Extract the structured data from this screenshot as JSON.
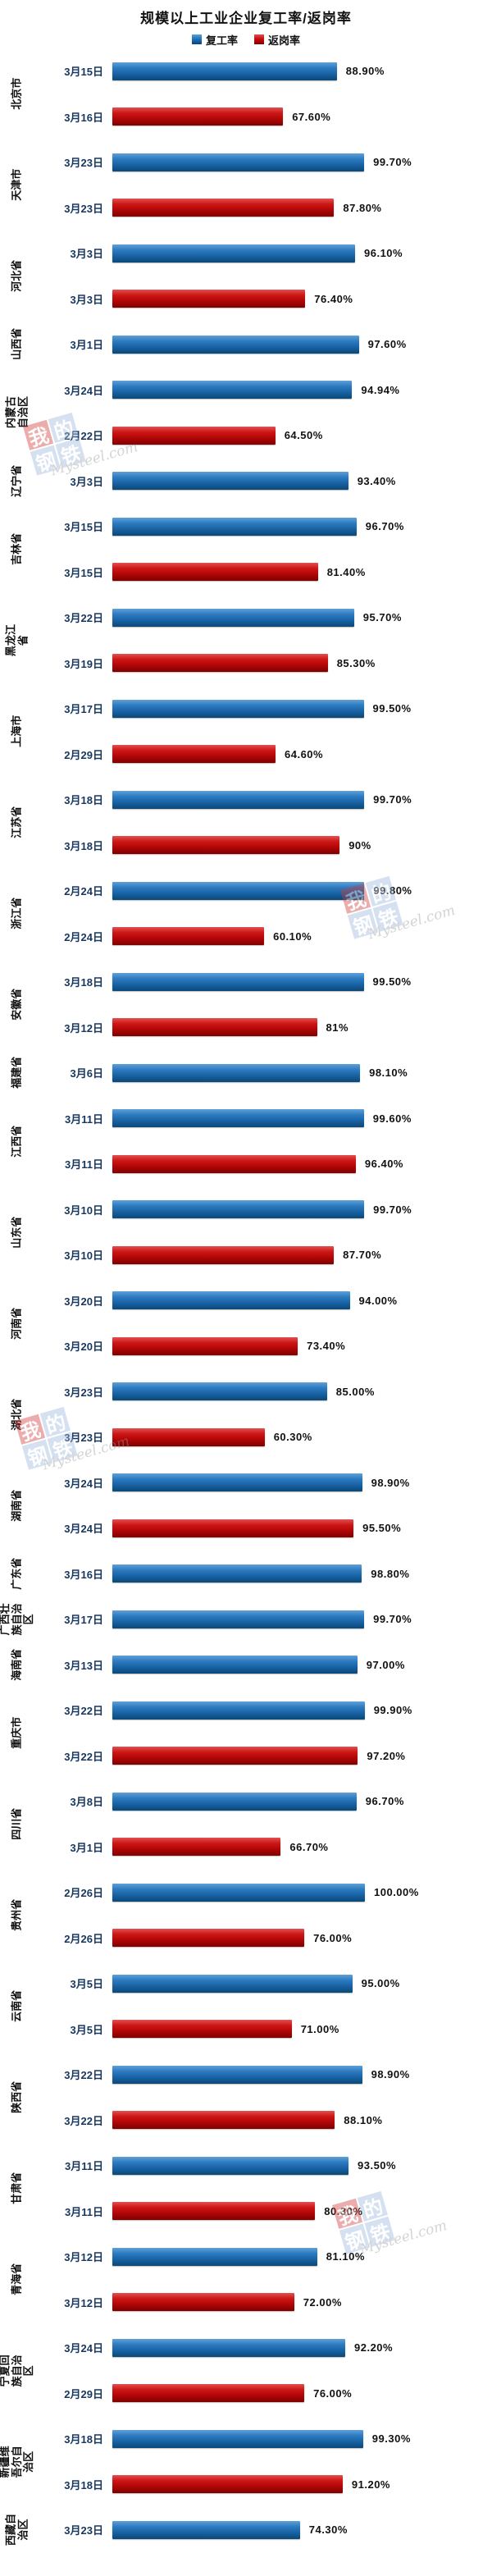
{
  "title": "规模以上工业企业复工率/返岗率",
  "legend": {
    "fugonglv": "复工率",
    "fangganglv": "返岗率"
  },
  "colors": {
    "fugonglv_blue": "#2272B8",
    "fangganglv_red": "#C80D0D",
    "background": "#FFFFFF"
  },
  "watermark": {
    "tiles": [
      "我",
      "的",
      "钢",
      "铁"
    ],
    "site": "Mysteel.com"
  },
  "chart_data": {
    "type": "bar",
    "orientation": "horizontal",
    "title": "规模以上工业企业复工率/返岗率",
    "xlabel": "",
    "ylabel": "",
    "xlim": [
      0,
      100
    ],
    "unit": "%",
    "grid": false,
    "legend_position": "top",
    "series_names": [
      "复工率",
      "返岗率"
    ],
    "groups": [
      {
        "province": "北京市",
        "bars": [
          {
            "date": "3月15日",
            "series": "复工率",
            "value": 88.9,
            "label": "88.90%"
          },
          {
            "date": "3月16日",
            "series": "返岗率",
            "value": 67.6,
            "label": "67.60%"
          }
        ]
      },
      {
        "province": "天津市",
        "bars": [
          {
            "date": "3月23日",
            "series": "复工率",
            "value": 99.7,
            "label": "99.70%"
          },
          {
            "date": "3月23日",
            "series": "返岗率",
            "value": 87.8,
            "label": "87.80%"
          }
        ]
      },
      {
        "province": "河北省",
        "bars": [
          {
            "date": "3月3日",
            "series": "复工率",
            "value": 96.1,
            "label": "96.10%"
          },
          {
            "date": "3月3日",
            "series": "返岗率",
            "value": 76.4,
            "label": "76.40%"
          }
        ]
      },
      {
        "province": "山西省",
        "bars": [
          {
            "date": "3月1日",
            "series": "复工率",
            "value": 97.6,
            "label": "97.60%"
          }
        ]
      },
      {
        "province": "内蒙古自治区",
        "bars": [
          {
            "date": "3月24日",
            "series": "复工率",
            "value": 94.94,
            "label": "94.94%"
          },
          {
            "date": "2月22日",
            "series": "返岗率",
            "value": 64.5,
            "label": "64.50%"
          }
        ]
      },
      {
        "province": "辽宁省",
        "bars": [
          {
            "date": "3月3日",
            "series": "复工率",
            "value": 93.4,
            "label": "93.40%"
          }
        ]
      },
      {
        "province": "吉林省",
        "bars": [
          {
            "date": "3月15日",
            "series": "复工率",
            "value": 96.7,
            "label": "96.70%"
          },
          {
            "date": "3月15日",
            "series": "返岗率",
            "value": 81.4,
            "label": "81.40%"
          }
        ]
      },
      {
        "province": "黑龙江省",
        "bars": [
          {
            "date": "3月22日",
            "series": "复工率",
            "value": 95.7,
            "label": "95.70%"
          },
          {
            "date": "3月19日",
            "series": "返岗率",
            "value": 85.3,
            "label": "85.30%"
          }
        ]
      },
      {
        "province": "上海市",
        "bars": [
          {
            "date": "3月17日",
            "series": "复工率",
            "value": 99.5,
            "label": "99.50%"
          },
          {
            "date": "2月29日",
            "series": "返岗率",
            "value": 64.6,
            "label": "64.60%"
          }
        ]
      },
      {
        "province": "江苏省",
        "bars": [
          {
            "date": "3月18日",
            "series": "复工率",
            "value": 99.7,
            "label": "99.70%"
          },
          {
            "date": "3月18日",
            "series": "返岗率",
            "value": 90,
            "label": "90%"
          }
        ]
      },
      {
        "province": "浙江省",
        "bars": [
          {
            "date": "2月24日",
            "series": "复工率",
            "value": 99.8,
            "label": "99.80%"
          },
          {
            "date": "2月24日",
            "series": "返岗率",
            "value": 60.1,
            "label": "60.10%"
          }
        ]
      },
      {
        "province": "安徽省",
        "bars": [
          {
            "date": "3月18日",
            "series": "复工率",
            "value": 99.5,
            "label": "99.50%"
          },
          {
            "date": "3月12日",
            "series": "返岗率",
            "value": 81,
            "label": "81%"
          }
        ]
      },
      {
        "province": "福建省",
        "bars": [
          {
            "date": "3月6日",
            "series": "复工率",
            "value": 98.1,
            "label": "98.10%"
          }
        ]
      },
      {
        "province": "江西省",
        "bars": [
          {
            "date": "3月11日",
            "series": "复工率",
            "value": 99.6,
            "label": "99.60%"
          },
          {
            "date": "3月11日",
            "series": "返岗率",
            "value": 96.4,
            "label": "96.40%"
          }
        ]
      },
      {
        "province": "山东省",
        "bars": [
          {
            "date": "3月10日",
            "series": "复工率",
            "value": 99.7,
            "label": "99.70%"
          },
          {
            "date": "3月10日",
            "series": "返岗率",
            "value": 87.7,
            "label": "87.70%"
          }
        ]
      },
      {
        "province": "河南省",
        "bars": [
          {
            "date": "3月20日",
            "series": "复工率",
            "value": 94.0,
            "label": "94.00%"
          },
          {
            "date": "3月20日",
            "series": "返岗率",
            "value": 73.4,
            "label": "73.40%"
          }
        ]
      },
      {
        "province": "湖北省",
        "bars": [
          {
            "date": "3月23日",
            "series": "复工率",
            "value": 85.0,
            "label": "85.00%"
          },
          {
            "date": "3月23日",
            "series": "返岗率",
            "value": 60.3,
            "label": "60.30%"
          }
        ]
      },
      {
        "province": "湖南省",
        "bars": [
          {
            "date": "3月24日",
            "series": "复工率",
            "value": 98.9,
            "label": "98.90%"
          },
          {
            "date": "3月24日",
            "series": "返岗率",
            "value": 95.5,
            "label": "95.50%"
          }
        ]
      },
      {
        "province": "广东省",
        "bars": [
          {
            "date": "3月16日",
            "series": "复工率",
            "value": 98.8,
            "label": "98.80%"
          }
        ]
      },
      {
        "province": "广西壮族自治区",
        "bars": [
          {
            "date": "3月17日",
            "series": "复工率",
            "value": 99.7,
            "label": "99.70%"
          }
        ]
      },
      {
        "province": "海南省",
        "bars": [
          {
            "date": "3月13日",
            "series": "复工率",
            "value": 97.0,
            "label": "97.00%"
          }
        ]
      },
      {
        "province": "重庆市",
        "bars": [
          {
            "date": "3月22日",
            "series": "复工率",
            "value": 99.9,
            "label": "99.90%"
          },
          {
            "date": "3月22日",
            "series": "返岗率",
            "value": 97.2,
            "label": "97.20%"
          }
        ]
      },
      {
        "province": "四川省",
        "bars": [
          {
            "date": "3月8日",
            "series": "复工率",
            "value": 96.7,
            "label": "96.70%"
          },
          {
            "date": "3月1日",
            "series": "返岗率",
            "value": 66.7,
            "label": "66.70%"
          }
        ]
      },
      {
        "province": "贵州省",
        "bars": [
          {
            "date": "2月26日",
            "series": "复工率",
            "value": 100.0,
            "label": "100.00%"
          },
          {
            "date": "2月26日",
            "series": "返岗率",
            "value": 76.0,
            "label": "76.00%"
          }
        ]
      },
      {
        "province": "云南省",
        "bars": [
          {
            "date": "3月5日",
            "series": "复工率",
            "value": 95.0,
            "label": "95.00%"
          },
          {
            "date": "3月5日",
            "series": "返岗率",
            "value": 71.0,
            "label": "71.00%"
          }
        ]
      },
      {
        "province": "陕西省",
        "bars": [
          {
            "date": "3月22日",
            "series": "复工率",
            "value": 98.9,
            "label": "98.90%"
          },
          {
            "date": "3月22日",
            "series": "返岗率",
            "value": 88.1,
            "label": "88.10%"
          }
        ]
      },
      {
        "province": "甘肃省",
        "bars": [
          {
            "date": "3月11日",
            "series": "复工率",
            "value": 93.5,
            "label": "93.50%"
          },
          {
            "date": "3月11日",
            "series": "返岗率",
            "value": 80.3,
            "label": "80.30%"
          }
        ]
      },
      {
        "province": "青海省",
        "bars": [
          {
            "date": "3月12日",
            "series": "复工率",
            "value": 81.1,
            "label": "81.10%"
          },
          {
            "date": "3月12日",
            "series": "返岗率",
            "value": 72.0,
            "label": "72.00%"
          }
        ]
      },
      {
        "province": "宁夏回族自治区",
        "bars": [
          {
            "date": "3月24日",
            "series": "复工率",
            "value": 92.2,
            "label": "92.20%"
          },
          {
            "date": "2月29日",
            "series": "返岗率",
            "value": 76.0,
            "label": "76.00%"
          }
        ]
      },
      {
        "province": "新疆维吾尔自治区",
        "bars": [
          {
            "date": "3月18日",
            "series": "复工率",
            "value": 99.3,
            "label": "99.30%"
          },
          {
            "date": "3月18日",
            "series": "返岗率",
            "value": 91.2,
            "label": "91.20%"
          }
        ]
      },
      {
        "province": "西藏自治区",
        "bars": [
          {
            "date": "3月23日",
            "series": "复工率",
            "value": 74.3,
            "label": "74.30%"
          }
        ]
      }
    ]
  }
}
